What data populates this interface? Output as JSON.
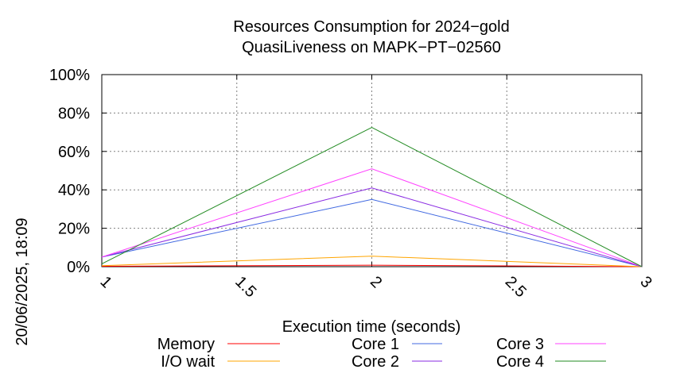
{
  "chart_data": {
    "type": "line",
    "title": [
      "Resources Consumption for 2024−gold",
      "QuasiLiveness on MAPK−PT−02560"
    ],
    "xlabel": "Execution time (seconds)",
    "ylabel": "",
    "xlim": [
      1,
      3
    ],
    "ylim": [
      0,
      100
    ],
    "xticks": [
      1,
      1.5,
      2,
      2.5,
      3
    ],
    "xtick_labels": [
      "1",
      "1.5",
      "2",
      "2.5",
      "3"
    ],
    "yticks": [
      0,
      20,
      40,
      60,
      80,
      100
    ],
    "ytick_labels": [
      "0%",
      "20%",
      "40%",
      "60%",
      "80%",
      "100%"
    ],
    "grid": true,
    "legend_position": "bottom",
    "x": [
      1,
      2,
      3
    ],
    "series": [
      {
        "name": "Memory",
        "color": "#ff0000",
        "values": [
          0.2,
          0.8,
          0
        ]
      },
      {
        "name": "I/O wait",
        "color": "#ffa500",
        "values": [
          0.5,
          5.5,
          0
        ]
      },
      {
        "name": "Core 1",
        "color": "#4169e1",
        "values": [
          5,
          35,
          0
        ]
      },
      {
        "name": "Core 2",
        "color": "#8a2be2",
        "values": [
          5,
          41,
          0
        ]
      },
      {
        "name": "Core 3",
        "color": "#ff40ff",
        "values": [
          5,
          51,
          0
        ]
      },
      {
        "name": "Core 4",
        "color": "#228b22",
        "values": [
          1.5,
          72.5,
          0
        ]
      }
    ]
  },
  "timestamp": "20/06/2025, 18:09"
}
